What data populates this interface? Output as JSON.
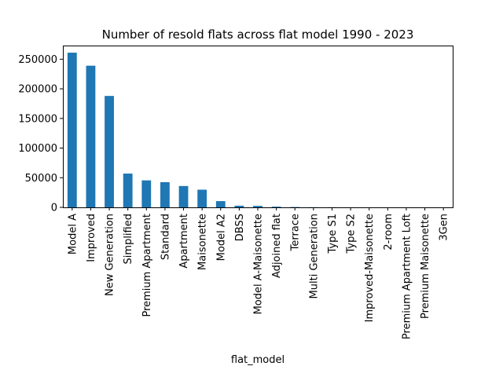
{
  "chart_data": {
    "type": "bar",
    "title": "Number of resold flats across flat model 1990 - 2023",
    "xlabel": "flat_model",
    "ylabel": "",
    "categories": [
      "Model A",
      "Improved",
      "New Generation",
      "Simplified",
      "Premium Apartment",
      "Standard",
      "Apartment",
      "Maisonette",
      "Model A2",
      "DBSS",
      "Model A-Maisonette",
      "Adjoined flat",
      "Terrace",
      "Multi Generation",
      "Type S1",
      "Type S2",
      "Improved-Maisonette",
      "2-room",
      "Premium Apartment Loft",
      "Premium Maisonette",
      "3Gen"
    ],
    "values": [
      261000,
      239000,
      188000,
      57000,
      45500,
      42500,
      36000,
      29800,
      10500,
      2800,
      2500,
      1200,
      600,
      250,
      200,
      100,
      80,
      50,
      30,
      20,
      10
    ],
    "ylim": [
      0,
      273000
    ],
    "yticks": [
      0,
      50000,
      100000,
      150000,
      200000,
      250000
    ],
    "bar_color": "#1f77b4",
    "grid": false,
    "legend": "none"
  }
}
